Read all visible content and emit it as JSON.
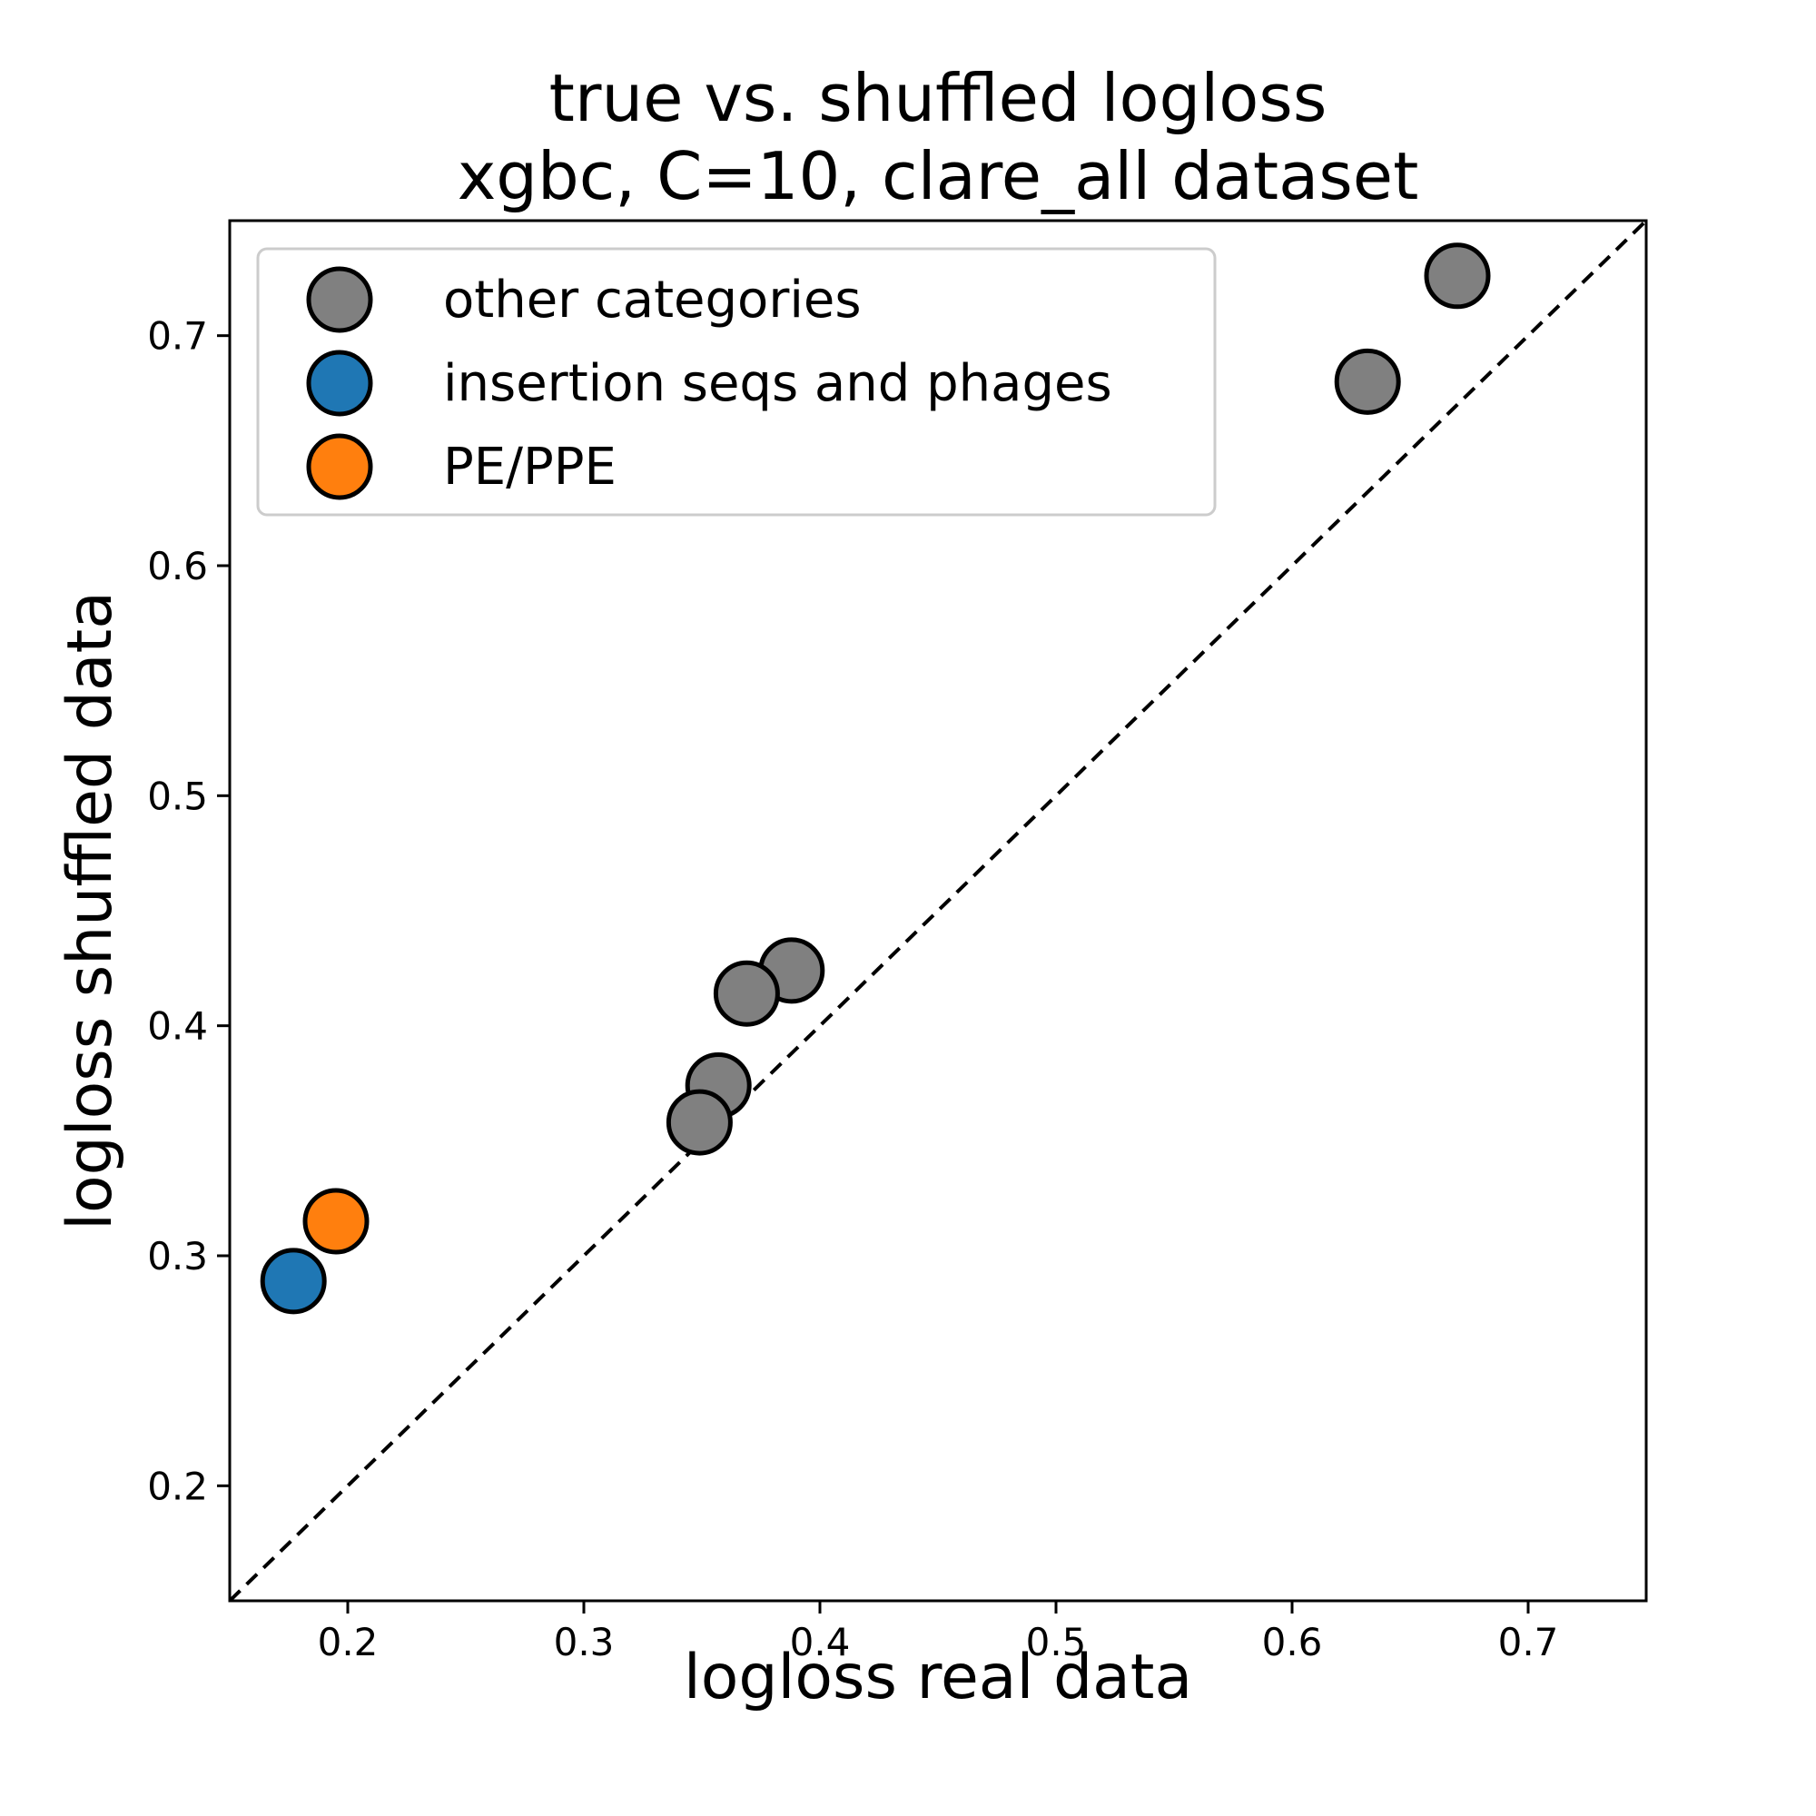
{
  "chart_data": {
    "type": "scatter",
    "title_line1": "true vs. shuffled logloss",
    "title_line2": "xgbc, C=10, clare_all dataset",
    "xlabel": "logloss real data",
    "ylabel": "logloss shuffled data",
    "xlim": [
      0.15,
      0.75
    ],
    "ylim": [
      0.15,
      0.75
    ],
    "xticks": [
      "0.2",
      "0.3",
      "0.4",
      "0.5",
      "0.6",
      "0.7"
    ],
    "yticks": [
      "0.2",
      "0.3",
      "0.4",
      "0.5",
      "0.6",
      "0.7"
    ],
    "reference_line": "y = x (dashed)",
    "legend_position": "upper-left",
    "series": [
      {
        "name": "other categories",
        "color": "#808080",
        "points": [
          {
            "x": 0.67,
            "y": 0.726
          },
          {
            "x": 0.632,
            "y": 0.68
          },
          {
            "x": 0.388,
            "y": 0.424
          },
          {
            "x": 0.369,
            "y": 0.414
          },
          {
            "x": 0.357,
            "y": 0.374
          },
          {
            "x": 0.349,
            "y": 0.358
          }
        ]
      },
      {
        "name": "insertion seqs and phages",
        "color": "#1f77b4",
        "points": [
          {
            "x": 0.177,
            "y": 0.289
          }
        ]
      },
      {
        "name": "PE/PPE",
        "color": "#ff7f0e",
        "points": [
          {
            "x": 0.195,
            "y": 0.315
          }
        ]
      }
    ]
  }
}
